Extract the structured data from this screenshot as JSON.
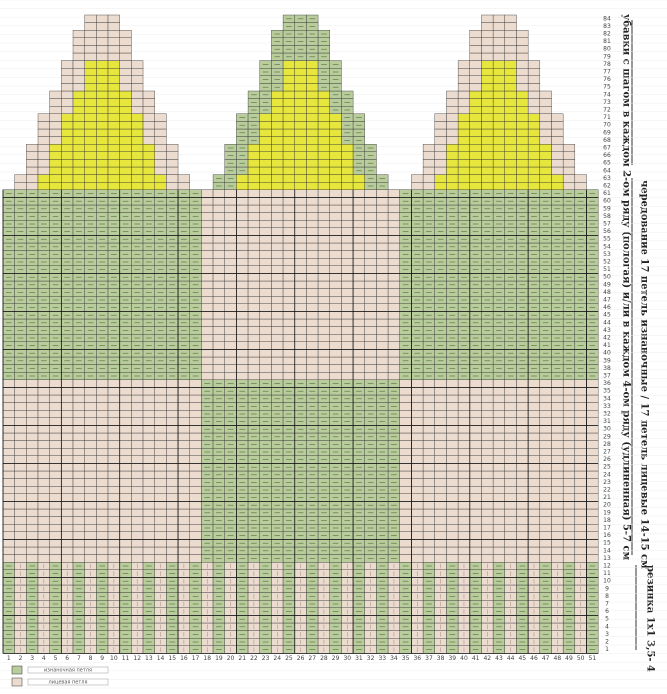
{
  "header": {
    "annotation_top": "убавки с шагом в каждом 2-ом ряду (пологая) и/ли в каждом 4-ом ряду (удлиненная) 5-7 см",
    "annotation_middle": "чередование 17 петель изнаночные / 17 петель лицевые 14-15 см",
    "annotation_bottom": "резинка 1х1 3,5- 4"
  },
  "row_numbers": [
    1,
    2,
    3,
    4,
    5,
    6,
    7,
    8,
    9,
    10,
    11,
    12,
    13,
    14,
    15,
    16,
    17,
    18,
    19,
    20,
    21,
    22,
    23,
    24,
    25,
    26,
    27,
    28,
    29,
    30,
    31,
    32,
    33,
    34,
    35,
    36,
    37,
    38,
    39,
    40,
    41,
    42,
    43,
    44,
    45,
    46,
    47,
    48,
    49,
    50,
    51,
    52,
    53,
    54,
    55,
    56,
    57,
    58,
    59,
    60,
    61,
    62,
    63,
    64,
    65,
    66,
    67,
    68,
    69,
    70,
    71,
    72,
    73,
    74,
    75,
    76,
    77,
    78,
    79,
    80,
    81,
    82,
    83,
    84
  ],
  "column_numbers": [
    1,
    2,
    3,
    4,
    5,
    6,
    7,
    8,
    9,
    10,
    11,
    12,
    13,
    14,
    15,
    16,
    17,
    18,
    19,
    20,
    21,
    22,
    23,
    24,
    25,
    26,
    27,
    28,
    29,
    30,
    31,
    32,
    33,
    34,
    35,
    36,
    37,
    38,
    39,
    40,
    41,
    42,
    43,
    44,
    45,
    46,
    47,
    48,
    49,
    50,
    51
  ],
  "legend": {
    "items": [
      {
        "label": "изнаночная петля",
        "color": "#b8cc9c"
      },
      {
        "label": "лицевая петля",
        "color": "#ecdcd0"
      }
    ]
  }
}
